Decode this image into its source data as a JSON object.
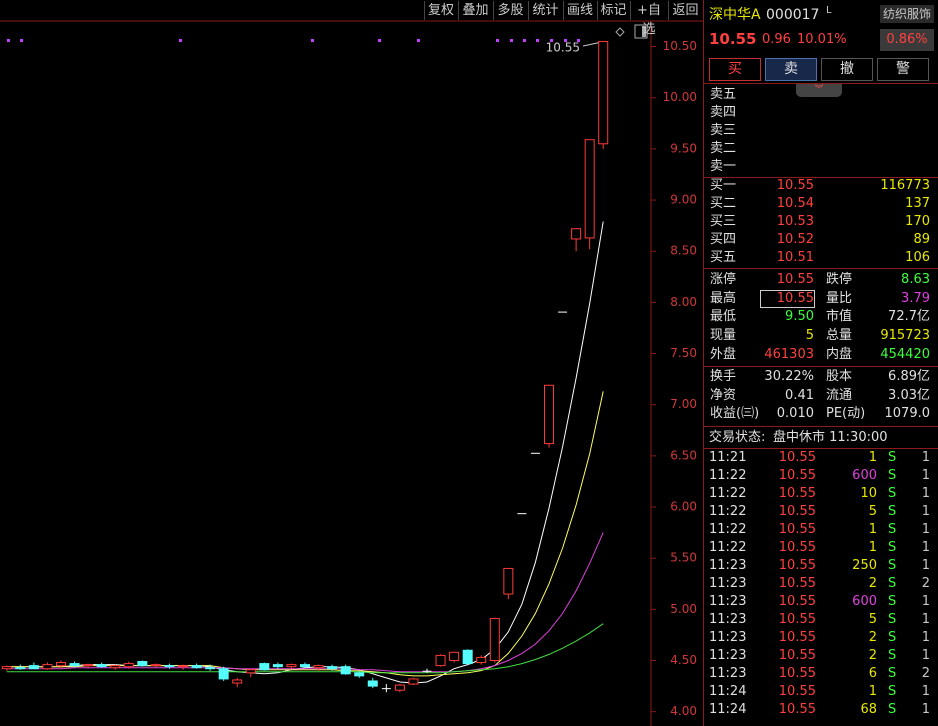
{
  "toolbar": [
    "复权",
    "叠加",
    "多股",
    "统计",
    "画线",
    "标记",
    "+自选",
    "返回"
  ],
  "chart_data": {
    "type": "candlestick",
    "categories": [
      null,
      null,
      null,
      null,
      null,
      null,
      null,
      null,
      null,
      null,
      null,
      null,
      null,
      null,
      null,
      null,
      null,
      null,
      null,
      null,
      null,
      null,
      null,
      null,
      null,
      null,
      null,
      null,
      null,
      null,
      null,
      null,
      null,
      null,
      null,
      null,
      null,
      null,
      null,
      null,
      null,
      null,
      null,
      null,
      null
    ],
    "open": [
      4.42,
      4.43,
      4.45,
      4.42,
      4.45,
      4.47,
      4.45,
      4.46,
      4.43,
      4.44,
      4.49,
      4.45,
      4.45,
      4.44,
      4.45,
      4.43,
      4.42,
      4.28,
      4.38,
      4.47,
      4.46,
      4.44,
      4.46,
      4.43,
      4.44,
      4.44,
      4.38,
      4.3,
      4.23,
      4.21,
      4.27,
      4.4,
      4.45,
      4.5,
      4.6,
      4.48,
      4.5,
      5.15,
      5.94,
      6.53,
      6.62,
      7.91,
      8.62,
      8.63,
      9.55
    ],
    "high": [
      4.45,
      4.46,
      4.48,
      4.48,
      4.5,
      4.49,
      4.47,
      4.48,
      4.46,
      4.49,
      4.5,
      4.47,
      4.47,
      4.46,
      4.47,
      4.46,
      4.44,
      4.33,
      4.42,
      4.48,
      4.48,
      4.47,
      4.48,
      4.46,
      4.46,
      4.46,
      4.4,
      4.33,
      4.27,
      4.27,
      4.33,
      4.42,
      4.56,
      4.58,
      4.61,
      4.55,
      4.92,
      5.4,
      5.94,
      6.53,
      7.19,
      7.91,
      8.72,
      9.59,
      10.55
    ],
    "low": [
      4.4,
      4.41,
      4.42,
      4.41,
      4.42,
      4.43,
      4.42,
      4.43,
      4.41,
      4.42,
      4.44,
      4.43,
      4.42,
      4.41,
      4.42,
      4.4,
      4.3,
      4.24,
      4.34,
      4.4,
      4.42,
      4.42,
      4.43,
      4.4,
      4.4,
      4.36,
      4.33,
      4.23,
      4.19,
      4.19,
      4.26,
      4.38,
      4.44,
      4.48,
      4.46,
      4.46,
      4.48,
      5.1,
      5.94,
      6.53,
      6.58,
      7.91,
      8.5,
      8.52,
      9.5
    ],
    "close": [
      4.44,
      4.42,
      4.42,
      4.46,
      4.48,
      4.45,
      4.46,
      4.44,
      4.45,
      4.47,
      4.45,
      4.46,
      4.44,
      4.45,
      4.43,
      4.42,
      4.32,
      4.31,
      4.41,
      4.41,
      4.44,
      4.46,
      4.44,
      4.45,
      4.42,
      4.37,
      4.35,
      4.25,
      4.23,
      4.26,
      4.32,
      4.4,
      4.55,
      4.58,
      4.47,
      4.53,
      4.91,
      5.4,
      5.94,
      6.53,
      7.19,
      7.91,
      8.72,
      9.59,
      10.55
    ],
    "up_color": "#ff3a3a",
    "down_color": "#54fcfc",
    "flat_color": "#ffffff",
    "moving_averages": [
      {
        "color": "#ffffff",
        "values": [
          4.44,
          4.44,
          4.44,
          4.44,
          4.44,
          4.45,
          4.46,
          4.46,
          4.46,
          4.45,
          4.45,
          4.45,
          4.45,
          4.45,
          4.45,
          4.44,
          4.41,
          4.39,
          4.38,
          4.37,
          4.38,
          4.41,
          4.43,
          4.44,
          4.44,
          4.43,
          4.41,
          4.37,
          4.33,
          4.29,
          4.28,
          4.29,
          4.35,
          4.42,
          4.46,
          4.51,
          4.61,
          4.78,
          5.05,
          5.46,
          5.99,
          6.59,
          7.26,
          7.99,
          8.79
        ]
      },
      {
        "color": "#ffff60",
        "values": [
          4.44,
          4.44,
          4.44,
          4.44,
          4.44,
          4.44,
          4.45,
          4.45,
          4.45,
          4.45,
          4.45,
          4.45,
          4.45,
          4.45,
          4.45,
          4.45,
          4.43,
          4.42,
          4.41,
          4.41,
          4.41,
          4.41,
          4.41,
          4.41,
          4.41,
          4.4,
          4.4,
          4.39,
          4.38,
          4.36,
          4.35,
          4.35,
          4.36,
          4.37,
          4.38,
          4.4,
          4.45,
          4.57,
          4.74,
          4.96,
          5.25,
          5.6,
          6.02,
          6.52,
          7.13
        ]
      },
      {
        "color": "#e040e0",
        "values": [
          4.42,
          4.42,
          4.42,
          4.42,
          4.42,
          4.43,
          4.43,
          4.43,
          4.43,
          4.43,
          4.43,
          4.43,
          4.43,
          4.43,
          4.43,
          4.43,
          4.43,
          4.42,
          4.42,
          4.42,
          4.42,
          4.42,
          4.42,
          4.42,
          4.42,
          4.42,
          4.41,
          4.41,
          4.4,
          4.39,
          4.39,
          4.39,
          4.39,
          4.39,
          4.4,
          4.42,
          4.45,
          4.5,
          4.57,
          4.66,
          4.79,
          4.96,
          5.18,
          5.45,
          5.75
        ]
      },
      {
        "color": "#40e040",
        "values": [
          4.39,
          4.39,
          4.39,
          4.39,
          4.39,
          4.39,
          4.39,
          4.39,
          4.39,
          4.39,
          4.39,
          4.39,
          4.39,
          4.39,
          4.39,
          4.39,
          4.39,
          4.39,
          4.39,
          4.39,
          4.39,
          4.39,
          4.39,
          4.39,
          4.39,
          4.39,
          4.39,
          4.38,
          4.38,
          4.38,
          4.38,
          4.38,
          4.38,
          4.39,
          4.4,
          4.41,
          4.42,
          4.44,
          4.47,
          4.51,
          4.56,
          4.62,
          4.69,
          4.77,
          4.86
        ]
      }
    ],
    "max_label": "10.55",
    "ylim": [
      3.86,
      10.75
    ],
    "yticks": [
      {
        "value": 4,
        "label": "4.00"
      },
      {
        "value": 4.5,
        "label": "4.50"
      },
      {
        "value": 5,
        "label": "5.00"
      },
      {
        "value": 5.5,
        "label": "5.50"
      },
      {
        "value": 6,
        "label": "6.00"
      },
      {
        "value": 6.5,
        "label": "6.50"
      },
      {
        "value": 7,
        "label": "7.00"
      },
      {
        "value": 7.5,
        "label": "7.50"
      },
      {
        "value": 8,
        "label": "8.00"
      },
      {
        "value": 8.5,
        "label": "8.50"
      },
      {
        "value": 9,
        "label": "9.00"
      },
      {
        "value": 9.5,
        "label": "9.50"
      },
      {
        "value": 10,
        "label": "10.00"
      },
      {
        "value": 10.5,
        "label": "10.50"
      }
    ]
  },
  "quote": {
    "name": "深中华A",
    "code": "000017",
    "flag": "L",
    "sector": "纺织服饰",
    "price": "10.55",
    "change": "0.96",
    "pct": "10.01%",
    "sector_pct": "0.86%"
  },
  "buttons": [
    "买",
    "卖",
    "撤",
    "警"
  ],
  "sell_book": [
    "卖五",
    "卖四",
    "卖三",
    "卖二",
    "卖一"
  ],
  "buy_book": [
    [
      "买一",
      "10.55",
      "116773"
    ],
    [
      "买二",
      "10.54",
      "137"
    ],
    [
      "买三",
      "10.53",
      "170"
    ],
    [
      "买四",
      "10.52",
      "89"
    ],
    [
      "买五",
      "10.51",
      "106"
    ]
  ],
  "stats": [
    [
      "涨停",
      "10.55",
      "跌停",
      "8.63"
    ],
    [
      "最高",
      "10.55",
      "量比",
      "3.79"
    ],
    [
      "最低",
      "9.50",
      "市值",
      "72.7亿"
    ],
    [
      "现量",
      "5",
      "总量",
      "915723"
    ],
    [
      "外盘",
      "461303",
      "内盘",
      "454420"
    ]
  ],
  "fundamentals": [
    [
      "换手",
      "30.22%",
      "股本",
      "6.89亿"
    ],
    [
      "净资",
      "0.41",
      "流通",
      "3.03亿"
    ],
    [
      "收益(㈢)",
      "0.010",
      "PE(动)",
      "1079.0"
    ]
  ],
  "status": {
    "label": "交易状态:",
    "value": "盘中休市 11:30:00"
  },
  "trades": [
    [
      "11:21",
      "10.55",
      "1",
      "S",
      "1"
    ],
    [
      "11:22",
      "10.55",
      "600",
      "S",
      "1"
    ],
    [
      "11:22",
      "10.55",
      "10",
      "S",
      "1"
    ],
    [
      "11:22",
      "10.55",
      "5",
      "S",
      "1"
    ],
    [
      "11:22",
      "10.55",
      "1",
      "S",
      "1"
    ],
    [
      "11:22",
      "10.55",
      "1",
      "S",
      "1"
    ],
    [
      "11:23",
      "10.55",
      "250",
      "S",
      "1"
    ],
    [
      "11:23",
      "10.55",
      "2",
      "S",
      "2"
    ],
    [
      "11:23",
      "10.55",
      "600",
      "S",
      "1"
    ],
    [
      "11:23",
      "10.55",
      "5",
      "S",
      "1"
    ],
    [
      "11:23",
      "10.55",
      "2",
      "S",
      "1"
    ],
    [
      "11:23",
      "10.55",
      "2",
      "S",
      "1"
    ],
    [
      "11:23",
      "10.55",
      "6",
      "S",
      "2"
    ],
    [
      "11:24",
      "10.55",
      "1",
      "S",
      "1"
    ],
    [
      "11:24",
      "10.55",
      "68",
      "S",
      "1"
    ]
  ]
}
